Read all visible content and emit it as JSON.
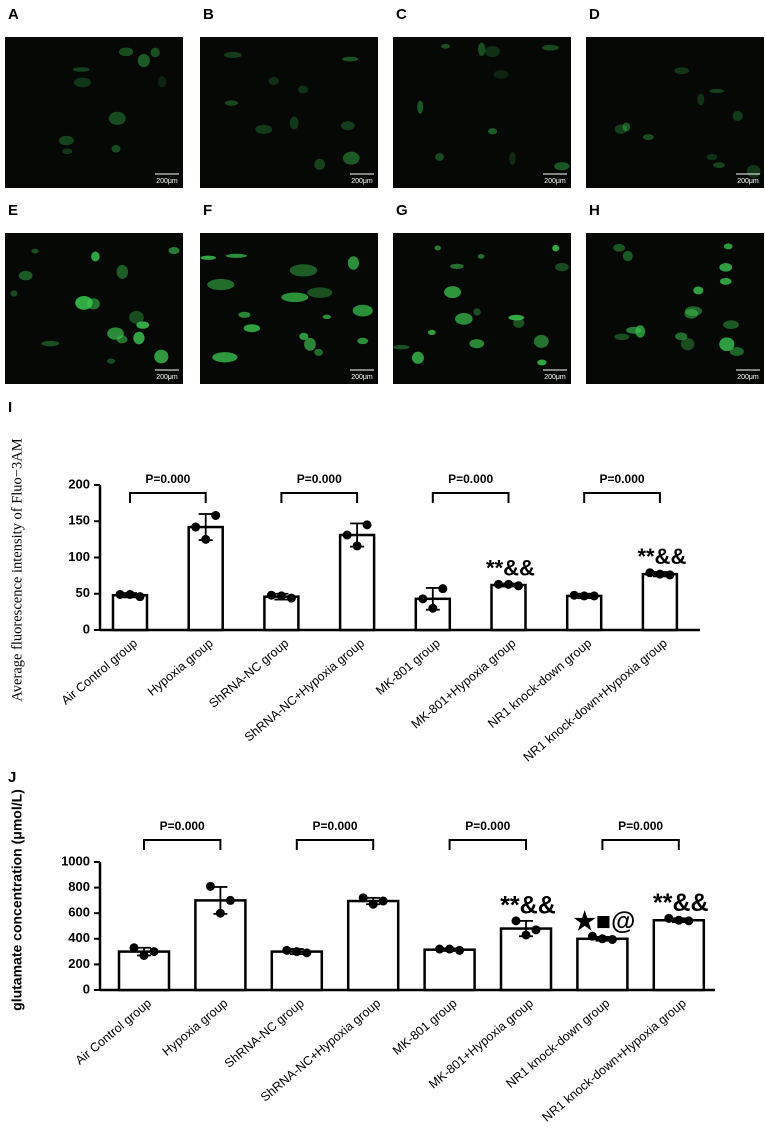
{
  "panels": [
    {
      "label": "A",
      "scale_bar": "200μm"
    },
    {
      "label": "B",
      "scale_bar": "200μm"
    },
    {
      "label": "C",
      "scale_bar": "200μm"
    },
    {
      "label": "D",
      "scale_bar": "200μm"
    },
    {
      "label": "E",
      "scale_bar": "200μm"
    },
    {
      "label": "F",
      "scale_bar": "200μm"
    },
    {
      "label": "G",
      "scale_bar": "200μm"
    },
    {
      "label": "H",
      "scale_bar": "200μm"
    }
  ],
  "chart_data": [
    {
      "type": "bar",
      "label": "I",
      "y_label": "Average fluorescence intensity of Fluo−3AM",
      "categories": [
        "Air Control group",
        "Hypoxia group",
        "ShRNA-NC group",
        "ShRNA-NC+Hypoxia group",
        "MK-801 group",
        "MK-801+Hypoxia group",
        "NR1 knock-down group",
        "NR1 knock-down+Hypoxia group"
      ],
      "values": [
        48,
        142,
        46,
        131,
        43,
        62,
        47,
        77
      ],
      "errors": [
        3,
        18,
        4,
        16,
        15,
        2,
        3,
        3
      ],
      "points": [
        [
          49,
          49,
          46
        ],
        [
          142,
          125,
          158
        ],
        [
          48,
          47,
          44
        ],
        [
          131,
          116,
          145
        ],
        [
          43,
          30,
          57
        ],
        [
          63,
          63,
          61
        ],
        [
          48,
          47,
          47
        ],
        [
          79,
          77,
          76
        ]
      ],
      "color": "#ffffff",
      "ylim": [
        0,
        200
      ],
      "yticks": [
        0,
        50,
        100,
        150,
        200
      ],
      "comparisons": [
        {
          "label": "P=0.000"
        },
        {
          "label": "P=0.000"
        },
        {
          "label": "P=0.000"
        },
        {
          "label": "P=0.000"
        }
      ],
      "annotations": [
        {
          "category": "MK-801+Hypoxia group",
          "text": "**&&"
        },
        {
          "category": "NR1 knock-down+Hypoxia group",
          "text": "**&&"
        }
      ]
    },
    {
      "type": "bar",
      "label": "J",
      "y_label": "glutamate concentration (μmol/L)",
      "categories": [
        "Air Control group",
        "Hypoxia group",
        "ShRNA-NC group",
        "ShRNA-NC+Hypoxia group",
        "MK-801 group",
        "MK-801+Hypoxia group",
        "NR1 knock-down group",
        "NR1 knock-down+Hypoxia group"
      ],
      "values": [
        300,
        700,
        300,
        695,
        315,
        480,
        400,
        545
      ],
      "errors": [
        30,
        105,
        20,
        25,
        10,
        60,
        15,
        15
      ],
      "points": [
        [
          330,
          270,
          300
        ],
        [
          810,
          600,
          700
        ],
        [
          310,
          300,
          290
        ],
        [
          720,
          670,
          695
        ],
        [
          320,
          320,
          310
        ],
        [
          540,
          430,
          470
        ],
        [
          420,
          400,
          395
        ],
        [
          560,
          545,
          540
        ]
      ],
      "color": "#ffffff",
      "ylim": [
        0,
        1000
      ],
      "yticks": [
        0,
        200,
        400,
        600,
        800,
        1000
      ],
      "comparisons": [
        {
          "label": "P=0.000"
        },
        {
          "label": "P=0.000"
        },
        {
          "label": "P=0.000"
        },
        {
          "label": "P=0.000"
        }
      ],
      "annotations": [
        {
          "category": "MK-801+Hypoxia group",
          "text": "**&&"
        },
        {
          "category": "NR1 knock-down group",
          "text": "★■@"
        },
        {
          "category": "NR1 knock-down+Hypoxia group",
          "text": "**&&"
        }
      ]
    }
  ]
}
